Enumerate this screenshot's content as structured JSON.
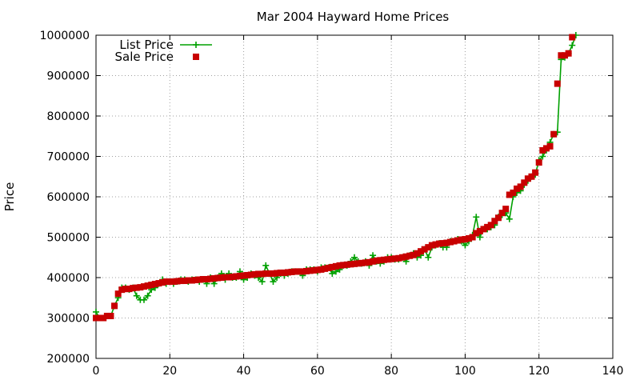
{
  "chart_data": {
    "type": "line",
    "title": "Mar 2004 Hayward Home Prices",
    "xlabel": "",
    "ylabel": "Price",
    "xlim": [
      0,
      140
    ],
    "ylim": [
      200000,
      1000000
    ],
    "x_ticks": [
      0,
      20,
      40,
      60,
      80,
      100,
      120,
      140
    ],
    "y_ticks": [
      200000,
      300000,
      400000,
      500000,
      600000,
      700000,
      800000,
      900000,
      1000000
    ],
    "grid": true,
    "legend_position": "top-left",
    "series": [
      {
        "name": "List Price",
        "style": "line-with-plus",
        "color": "#00a000",
        "values": [
          315000,
          300000,
          300000,
          305000,
          305000,
          330000,
          350000,
          375000,
          375000,
          370000,
          375000,
          355000,
          345000,
          345000,
          355000,
          370000,
          375000,
          385000,
          395000,
          385000,
          390000,
          385000,
          390000,
          395000,
          395000,
          390000,
          395000,
          395000,
          390000,
          395000,
          385000,
          400000,
          385000,
          400000,
          410000,
          395000,
          410000,
          400000,
          400000,
          415000,
          395000,
          400000,
          410000,
          405000,
          400000,
          390000,
          430000,
          410000,
          390000,
          400000,
          410000,
          405000,
          410000,
          415000,
          415000,
          415000,
          405000,
          420000,
          420000,
          420000,
          415000,
          425000,
          425000,
          425000,
          410000,
          415000,
          420000,
          430000,
          430000,
          440000,
          450000,
          440000,
          435000,
          440000,
          430000,
          455000,
          440000,
          435000,
          440000,
          450000,
          450000,
          445000,
          445000,
          450000,
          440000,
          455000,
          460000,
          450000,
          455000,
          470000,
          450000,
          475000,
          480000,
          485000,
          475000,
          475000,
          490000,
          490000,
          495000,
          490000,
          480000,
          490000,
          505000,
          550000,
          500000,
          520000,
          520000,
          525000,
          530000,
          550000,
          555000,
          560000,
          545000,
          600000,
          610000,
          615000,
          630000,
          640000,
          650000,
          655000,
          690000,
          700000,
          715000,
          735000,
          755000,
          760000,
          940000,
          945000,
          955000,
          975000,
          1000000
        ]
      },
      {
        "name": "Sale Price",
        "style": "square-markers",
        "color": "#c80000",
        "values": [
          300000,
          300000,
          300000,
          305000,
          305000,
          330000,
          360000,
          370000,
          372000,
          372000,
          374000,
          375000,
          376000,
          378000,
          380000,
          382000,
          384000,
          386000,
          388000,
          390000,
          390000,
          390000,
          391000,
          392000,
          392000,
          393000,
          393000,
          394000,
          395000,
          396000,
          396000,
          397000,
          398000,
          399000,
          400000,
          401000,
          401000,
          402000,
          403000,
          404000,
          405000,
          406000,
          407000,
          408000,
          409000,
          409000,
          410000,
          410000,
          410000,
          411000,
          412000,
          412000,
          413000,
          414000,
          415000,
          415000,
          415000,
          416000,
          417000,
          418000,
          419000,
          420000,
          422000,
          424000,
          426000,
          428000,
          430000,
          431000,
          432000,
          433000,
          434000,
          435000,
          436000,
          437000,
          438000,
          440000,
          442000,
          443000,
          444000,
          445000,
          446000,
          447000,
          448000,
          450000,
          452000,
          454000,
          456000,
          460000,
          465000,
          470000,
          475000,
          480000,
          482000,
          484000,
          485000,
          486000,
          488000,
          490000,
          492000,
          494000,
          495000,
          497000,
          500000,
          510000,
          515000,
          520000,
          525000,
          530000,
          540000,
          548000,
          560000,
          570000,
          605000,
          610000,
          620000,
          625000,
          635000,
          645000,
          650000,
          660000,
          685000,
          715000,
          720000,
          725000,
          755000,
          880000,
          950000,
          950000,
          955000,
          995000
        ]
      }
    ]
  }
}
